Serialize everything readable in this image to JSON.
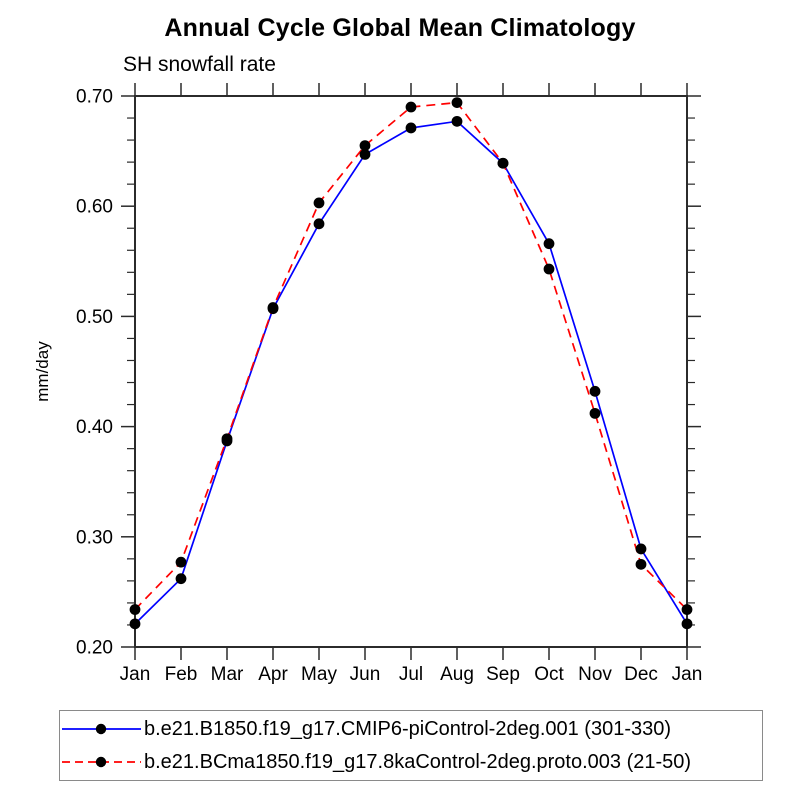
{
  "chart_data": {
    "type": "line",
    "title": "Annual Cycle Global Mean Climatology",
    "subtitle": "SH snowfall rate",
    "xlabel": "",
    "ylabel": "mm/day",
    "categories": [
      "Jan",
      "Feb",
      "Mar",
      "Apr",
      "May",
      "Jun",
      "Jul",
      "Aug",
      "Sep",
      "Oct",
      "Nov",
      "Dec",
      "Jan"
    ],
    "ylim": [
      0.2,
      0.7
    ],
    "ytick_interval": 0.1,
    "yminor_interval": 0.02,
    "yticklabels": [
      "0.20",
      "0.30",
      "0.40",
      "0.50",
      "0.60",
      "0.70"
    ],
    "grid": false,
    "legend_position": "bottom",
    "marker": {
      "shape": "filled-circle",
      "color": "#000000"
    },
    "axis_color": "#2b2b2b",
    "series": [
      {
        "name": "b.e21.B1850.f19_g17.CMIP6-piControl-2deg.001 (301-330)",
        "color": "#0000ff",
        "line_style": "solid",
        "values": [
          0.221,
          0.262,
          0.387,
          0.507,
          0.584,
          0.647,
          0.671,
          0.677,
          0.639,
          0.566,
          0.432,
          0.289,
          0.221
        ]
      },
      {
        "name": "b.e21.BCma1850.f19_g17.8kaControl-2deg.proto.003 (21-50)",
        "color": "#ff0000",
        "line_style": "dashed",
        "values": [
          0.234,
          0.277,
          0.389,
          0.508,
          0.603,
          0.655,
          0.69,
          0.694,
          0.639,
          0.543,
          0.412,
          0.275,
          0.234
        ]
      }
    ]
  }
}
